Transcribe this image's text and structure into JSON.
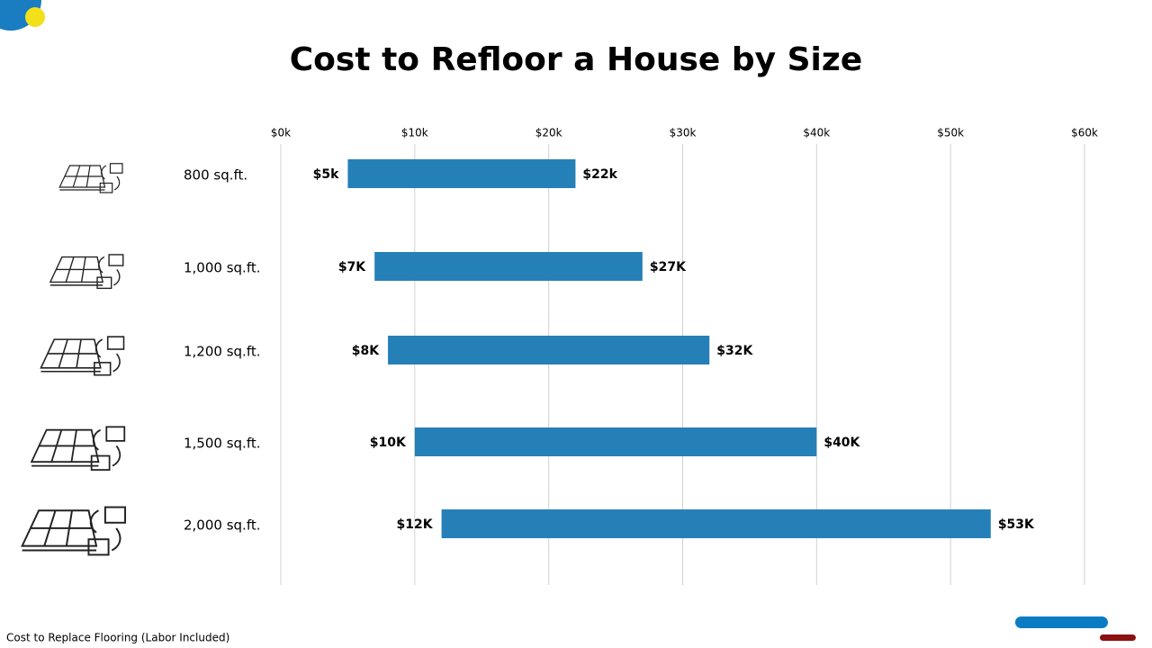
{
  "chart_data": {
    "type": "range_bar",
    "title": "Cost to Refloor a House by Size",
    "categories": [
      "800 sq.ft.",
      "1,000 sq.ft.",
      "1,200 sq.ft.",
      "1,500 sq.ft.",
      "2,000 sq.ft."
    ],
    "values": [
      [
        5,
        22
      ],
      [
        7,
        27
      ],
      [
        8,
        32
      ],
      [
        10,
        40
      ],
      [
        12,
        53
      ]
    ],
    "value_labels": [
      [
        "$5k",
        "$22k"
      ],
      [
        "$7K",
        "$27K"
      ],
      [
        "$8K",
        "$32K"
      ],
      [
        "$10K",
        "$40K"
      ],
      [
        "$12K",
        "$53K"
      ]
    ],
    "color": "#2580b8",
    "xlim": [
      0,
      60
    ],
    "xticks": [
      {
        "value": 0,
        "label": "$0k"
      },
      {
        "value": 10,
        "label": "$10k"
      },
      {
        "value": 20,
        "label": "$20k"
      },
      {
        "value": 30,
        "label": "$30k"
      },
      {
        "value": 40,
        "label": "$40k"
      },
      {
        "value": 50,
        "label": "$50k"
      },
      {
        "value": 60,
        "label": "$60k"
      }
    ],
    "grid": true
  },
  "footer": "Cost to Replace Flooring (Labor Included)"
}
